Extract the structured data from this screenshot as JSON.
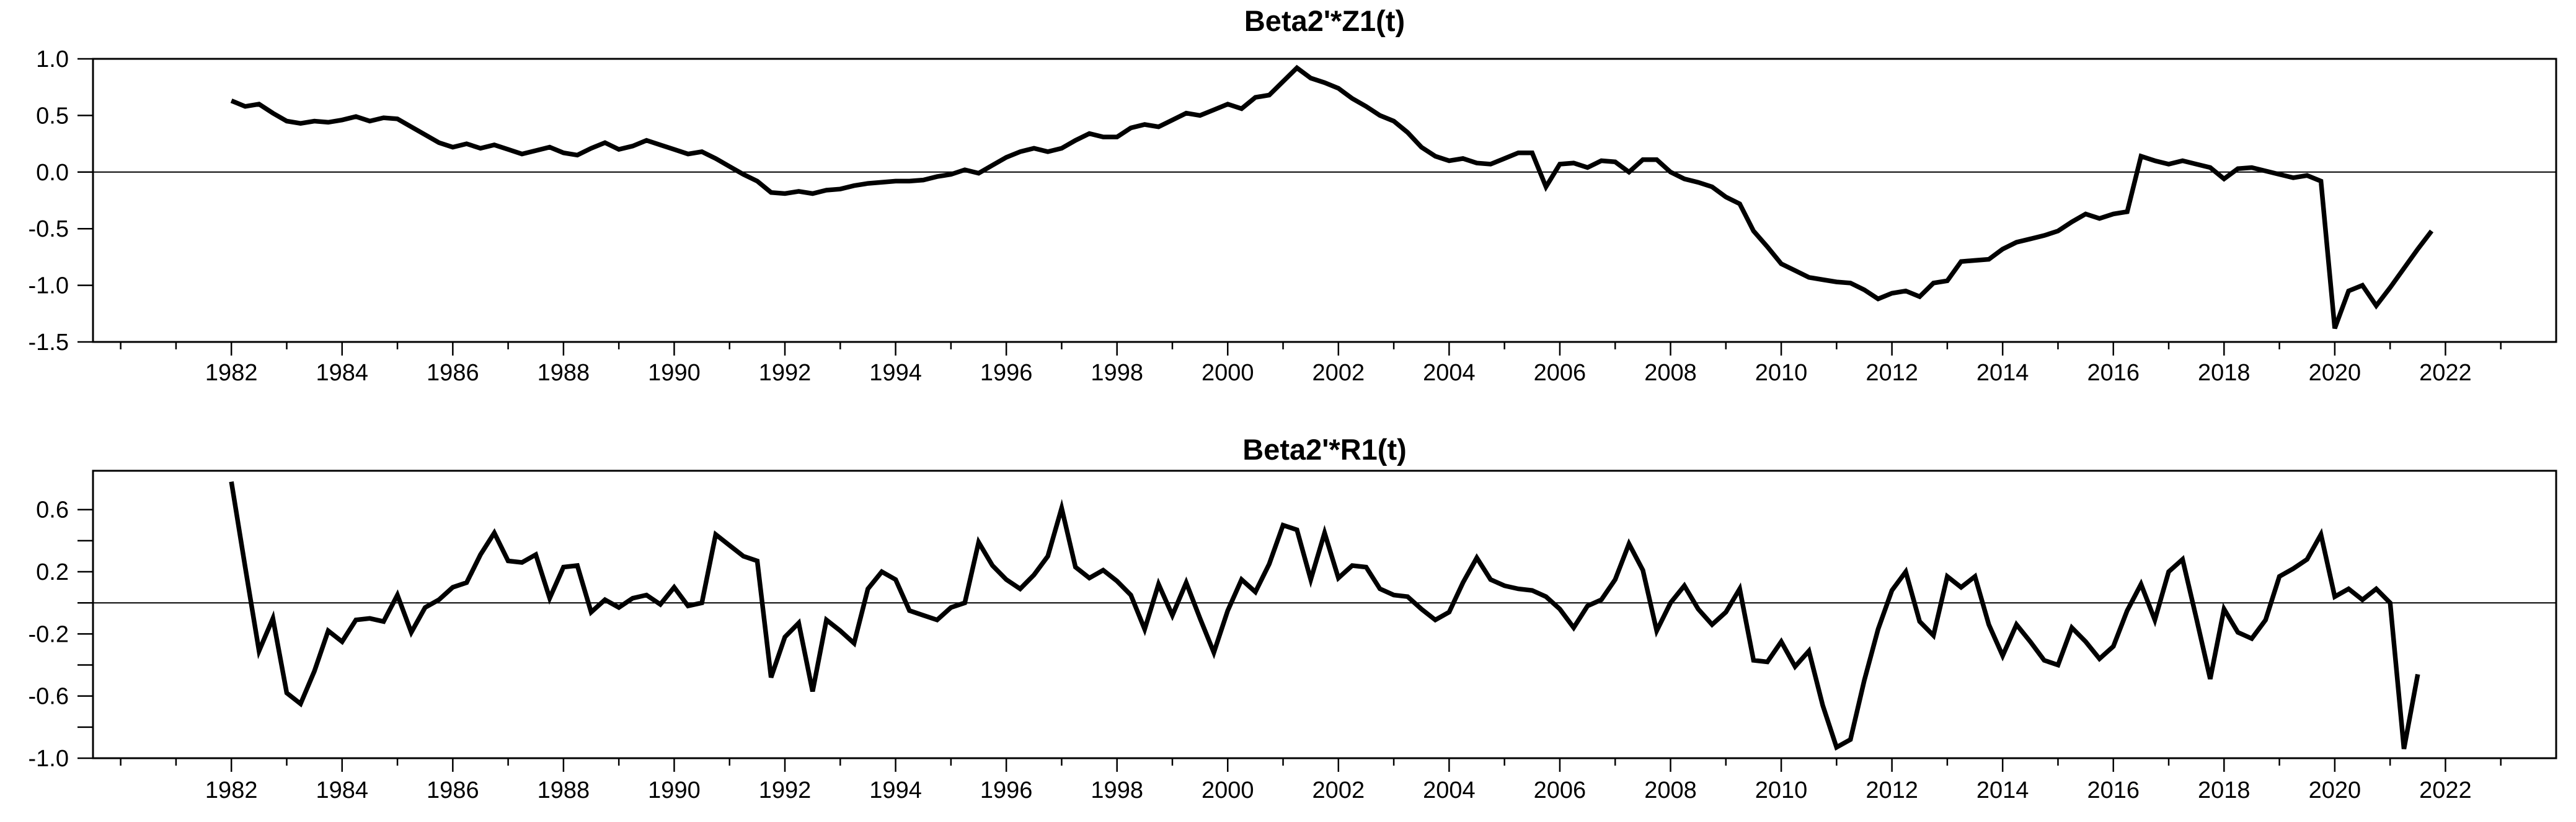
{
  "page": {
    "background": "#ffffff",
    "line_color": "#000000",
    "axis_color": "#000000"
  },
  "chart_data": [
    {
      "type": "line",
      "title": "Beta2'*Z1(t)",
      "xlabel": "",
      "ylabel": "",
      "grid": "zero-line-only",
      "legend_position": "none",
      "x_start_year": 1982.0,
      "x_step_years": 0.25,
      "xlim": [
        1979.5,
        2024.0
      ],
      "ylim": [
        -1.5,
        1.0
      ],
      "yticks_labeled": [
        {
          "value": 1.0,
          "label": "1.0"
        },
        {
          "value": 0.5,
          "label": "0.5"
        },
        {
          "value": 0.0,
          "label": "0.0"
        },
        {
          "value": -0.5,
          "label": "-0.5"
        },
        {
          "value": -1.0,
          "label": "-1.0"
        },
        {
          "value": -1.5,
          "label": "-1.5"
        }
      ],
      "yticks_minor": [],
      "xticks_labeled": [
        {
          "year": 1982,
          "label": "1982"
        },
        {
          "year": 1984,
          "label": "1984"
        },
        {
          "year": 1986,
          "label": "1986"
        },
        {
          "year": 1988,
          "label": "1988"
        },
        {
          "year": 1990,
          "label": "1990"
        },
        {
          "year": 1992,
          "label": "1992"
        },
        {
          "year": 1994,
          "label": "1994"
        },
        {
          "year": 1996,
          "label": "1996"
        },
        {
          "year": 1998,
          "label": "1998"
        },
        {
          "year": 2000,
          "label": "2000"
        },
        {
          "year": 2002,
          "label": "2002"
        },
        {
          "year": 2004,
          "label": "2004"
        },
        {
          "year": 2006,
          "label": "2006"
        },
        {
          "year": 2008,
          "label": "2008"
        },
        {
          "year": 2010,
          "label": "2010"
        },
        {
          "year": 2012,
          "label": "2012"
        },
        {
          "year": 2014,
          "label": "2014"
        },
        {
          "year": 2016,
          "label": "2016"
        },
        {
          "year": 2018,
          "label": "2018"
        },
        {
          "year": 2020,
          "label": "2020"
        },
        {
          "year": 2022,
          "label": "2022"
        }
      ],
      "xticks_minor_years": [
        1980,
        1981,
        1983,
        1985,
        1987,
        1989,
        1991,
        1993,
        1995,
        1997,
        1999,
        2001,
        2003,
        2005,
        2007,
        2009,
        2011,
        2013,
        2015,
        2017,
        2019,
        2021,
        2023
      ],
      "series": [
        {
          "name": "Beta2'*Z1(t)",
          "values": [
            0.63,
            0.58,
            0.6,
            0.52,
            0.45,
            0.43,
            0.45,
            0.44,
            0.46,
            0.49,
            0.45,
            0.48,
            0.47,
            0.4,
            0.33,
            0.26,
            0.22,
            0.25,
            0.21,
            0.24,
            0.2,
            0.16,
            0.19,
            0.22,
            0.17,
            0.15,
            0.21,
            0.26,
            0.2,
            0.23,
            0.28,
            0.24,
            0.2,
            0.16,
            0.18,
            0.12,
            0.05,
            -0.02,
            -0.08,
            -0.18,
            -0.19,
            -0.17,
            -0.19,
            -0.16,
            -0.15,
            -0.12,
            -0.1,
            -0.09,
            -0.08,
            -0.08,
            -0.07,
            -0.04,
            -0.02,
            0.02,
            -0.01,
            0.06,
            0.13,
            0.18,
            0.21,
            0.18,
            0.21,
            0.28,
            0.34,
            0.31,
            0.31,
            0.39,
            0.42,
            0.4,
            0.46,
            0.52,
            0.5,
            0.55,
            0.6,
            0.56,
            0.66,
            0.68,
            0.8,
            0.92,
            0.83,
            0.79,
            0.74,
            0.65,
            0.58,
            0.5,
            0.45,
            0.35,
            0.22,
            0.14,
            0.1,
            0.12,
            0.08,
            0.07,
            0.12,
            0.17,
            0.17,
            -0.13,
            0.07,
            0.08,
            0.04,
            0.1,
            0.09,
            0.0,
            0.11,
            0.11,
            0.0,
            -0.06,
            -0.09,
            -0.13,
            -0.22,
            -0.28,
            -0.52,
            -0.66,
            -0.81,
            -0.87,
            -0.93,
            -0.95,
            -0.97,
            -0.98,
            -1.04,
            -1.12,
            -1.07,
            -1.05,
            -1.1,
            -0.98,
            -0.96,
            -0.79,
            -0.78,
            -0.77,
            -0.68,
            -0.62,
            -0.59,
            -0.56,
            -0.52,
            -0.44,
            -0.37,
            -0.41,
            -0.37,
            -0.35,
            0.14,
            0.1,
            0.07,
            0.1,
            0.07,
            0.04,
            -0.06,
            0.03,
            0.04,
            0.01,
            -0.02,
            -0.05,
            -0.03,
            -0.08,
            -1.38,
            -1.05,
            -1.0,
            -1.18,
            -1.02,
            -0.85,
            -0.68,
            -0.52
          ]
        }
      ]
    },
    {
      "type": "line",
      "title": "Beta2'*R1(t)",
      "xlabel": "",
      "ylabel": "",
      "grid": "zero-line-only",
      "legend_position": "none",
      "x_start_year": 1982.0,
      "x_step_years": 0.25,
      "xlim": [
        1979.5,
        2024.0
      ],
      "ylim": [
        -1.0,
        0.85
      ],
      "yticks_labeled": [
        {
          "value": 0.6,
          "label": "0.6"
        },
        {
          "value": 0.2,
          "label": "0.2"
        },
        {
          "value": -0.2,
          "label": "-0.2"
        },
        {
          "value": -0.6,
          "label": "-0.6"
        },
        {
          "value": -1.0,
          "label": "-1.0"
        }
      ],
      "yticks_minor": [
        0.4,
        0.0,
        -0.4,
        -0.8
      ],
      "xticks_labeled": [
        {
          "year": 1982,
          "label": "1982"
        },
        {
          "year": 1984,
          "label": "1984"
        },
        {
          "year": 1986,
          "label": "1986"
        },
        {
          "year": 1988,
          "label": "1988"
        },
        {
          "year": 1990,
          "label": "1990"
        },
        {
          "year": 1992,
          "label": "1992"
        },
        {
          "year": 1994,
          "label": "1994"
        },
        {
          "year": 1996,
          "label": "1996"
        },
        {
          "year": 1998,
          "label": "1998"
        },
        {
          "year": 2000,
          "label": "2000"
        },
        {
          "year": 2002,
          "label": "2002"
        },
        {
          "year": 2004,
          "label": "2004"
        },
        {
          "year": 2006,
          "label": "2006"
        },
        {
          "year": 2008,
          "label": "2008"
        },
        {
          "year": 2010,
          "label": "2010"
        },
        {
          "year": 2012,
          "label": "2012"
        },
        {
          "year": 2014,
          "label": "2014"
        },
        {
          "year": 2016,
          "label": "2016"
        },
        {
          "year": 2018,
          "label": "2018"
        },
        {
          "year": 2020,
          "label": "2020"
        },
        {
          "year": 2022,
          "label": "2022"
        }
      ],
      "xticks_minor_years": [
        1980,
        1981,
        1983,
        1985,
        1987,
        1989,
        1991,
        1993,
        1995,
        1997,
        1999,
        2001,
        2003,
        2005,
        2007,
        2009,
        2011,
        2013,
        2015,
        2017,
        2019,
        2021,
        2023
      ],
      "series": [
        {
          "name": "Beta2'*R1(t)",
          "values": [
            0.78,
            0.23,
            -0.31,
            -0.1,
            -0.58,
            -0.65,
            -0.44,
            -0.18,
            -0.25,
            -0.11,
            -0.1,
            -0.12,
            0.05,
            -0.19,
            -0.03,
            0.02,
            0.1,
            0.13,
            0.31,
            0.45,
            0.27,
            0.26,
            0.31,
            0.03,
            0.23,
            0.24,
            -0.06,
            0.02,
            -0.03,
            0.03,
            0.05,
            -0.01,
            0.1,
            -0.02,
            0.0,
            0.44,
            0.37,
            0.3,
            0.27,
            -0.48,
            -0.22,
            -0.13,
            -0.57,
            -0.11,
            -0.18,
            -0.26,
            0.09,
            0.2,
            0.15,
            -0.05,
            -0.08,
            -0.11,
            -0.03,
            0.0,
            0.39,
            0.24,
            0.15,
            0.09,
            0.18,
            0.3,
            0.61,
            0.23,
            0.16,
            0.21,
            0.14,
            0.05,
            -0.17,
            0.12,
            -0.08,
            0.13,
            -0.1,
            -0.32,
            -0.05,
            0.15,
            0.07,
            0.25,
            0.5,
            0.47,
            0.15,
            0.45,
            0.16,
            0.24,
            0.23,
            0.09,
            0.05,
            0.04,
            -0.04,
            -0.11,
            -0.06,
            0.13,
            0.29,
            0.15,
            0.11,
            0.09,
            0.08,
            0.04,
            -0.04,
            -0.16,
            -0.02,
            0.02,
            0.15,
            0.38,
            0.21,
            -0.18,
            0.0,
            0.11,
            -0.04,
            -0.14,
            -0.06,
            0.09,
            -0.37,
            -0.38,
            -0.25,
            -0.41,
            -0.31,
            -0.66,
            -0.93,
            -0.88,
            -0.5,
            -0.17,
            0.08,
            0.2,
            -0.12,
            -0.21,
            0.17,
            0.1,
            0.17,
            -0.14,
            -0.34,
            -0.14,
            -0.25,
            -0.37,
            -0.4,
            -0.16,
            -0.25,
            -0.36,
            -0.28,
            -0.05,
            0.12,
            -0.11,
            0.2,
            0.28,
            -0.1,
            -0.49,
            -0.04,
            -0.19,
            -0.23,
            -0.11,
            0.17,
            0.22,
            0.28,
            0.44,
            0.04,
            0.09,
            0.02,
            0.09,
            0.0,
            -0.94,
            -0.46
          ]
        }
      ]
    }
  ]
}
